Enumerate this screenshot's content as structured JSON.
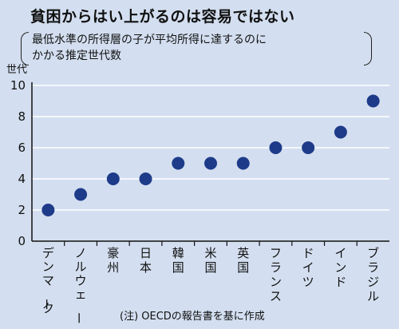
{
  "title": "貧困からはい上がるのは容易ではない",
  "subtitle_lines": [
    "最低水準の所得層の子が平均所得に達するのに",
    "かかる推定世代数"
  ],
  "unit": "世代",
  "note": "(注) OECDの報告書を基に作成",
  "colors": {
    "background": "#d3dff0",
    "point": "#1e3b8a",
    "grid": "#ffffff",
    "axis": "#111111"
  },
  "chart_data": {
    "type": "scatter",
    "categories": [
      "デンマーク",
      "ノルウェー",
      "豪州",
      "日本",
      "韓国",
      "米国",
      "英国",
      "フランス",
      "ドイツ",
      "インド",
      "ブラジル"
    ],
    "values": [
      2,
      3,
      4,
      4,
      5,
      5,
      5,
      6,
      6,
      7,
      9
    ],
    "ylabel": "世代",
    "ylim": [
      0,
      10
    ],
    "yticks": [
      0,
      2,
      4,
      6,
      8,
      10
    ],
    "grid": true
  }
}
